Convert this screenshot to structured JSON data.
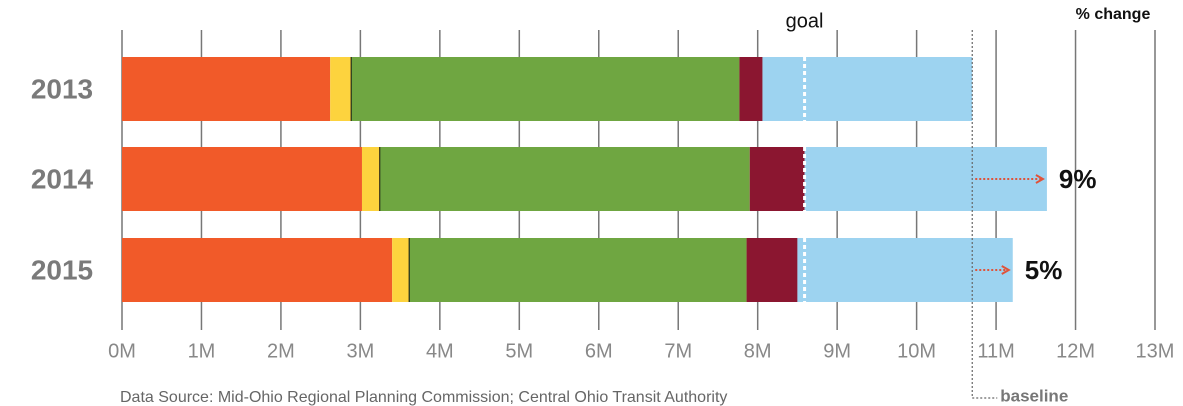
{
  "chart_data": {
    "type": "stacked-bar-horizontal",
    "categories": [
      "2013",
      "2014",
      "2015"
    ],
    "series": [
      {
        "color": "#f15a29",
        "values": [
          2.62,
          3.02,
          3.4
        ]
      },
      {
        "color": "#fdd33e",
        "values": [
          0.27,
          0.23,
          0.22
        ]
      },
      {
        "color": "#6fa641",
        "values": [
          4.88,
          4.65,
          4.24
        ]
      },
      {
        "color": "#8b1630",
        "values": [
          0.29,
          0.69,
          0.64
        ]
      },
      {
        "color": "#9dd3f0",
        "values": [
          2.64,
          3.05,
          2.71
        ]
      }
    ],
    "xlim": [
      0,
      13
    ],
    "xticks": [
      {
        "value": 0,
        "label": "0M"
      },
      {
        "value": 1,
        "label": "1M"
      },
      {
        "value": 2,
        "label": "2M"
      },
      {
        "value": 3,
        "label": "3M"
      },
      {
        "value": 4,
        "label": "4M"
      },
      {
        "value": 5,
        "label": "5M"
      },
      {
        "value": 6,
        "label": "6M"
      },
      {
        "value": 7,
        "label": "7M"
      },
      {
        "value": 8,
        "label": "8M"
      },
      {
        "value": 9,
        "label": "9M"
      },
      {
        "value": 10,
        "label": "10M"
      },
      {
        "value": 11,
        "label": "11M"
      },
      {
        "value": 12,
        "label": "12M"
      },
      {
        "value": 13,
        "label": "13M"
      }
    ],
    "grid": true,
    "goal": {
      "text": "goal",
      "value": 8.59
    },
    "baseline": {
      "text": "baseline",
      "value": 10.7
    },
    "change": {
      "title": "% change",
      "values": [
        null,
        9,
        5
      ],
      "value_labels": [
        null,
        "9%",
        "5%"
      ]
    },
    "source": "Data Source: Mid-Ohio Regional Planning Commission; Central Ohio Transit Authority"
  }
}
